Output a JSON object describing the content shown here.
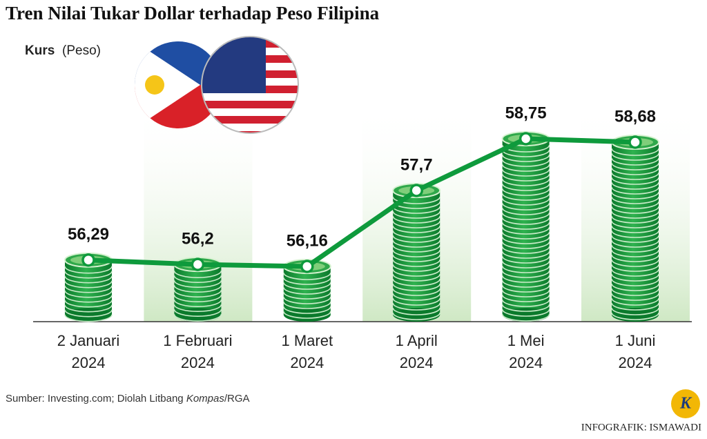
{
  "chart_data": {
    "type": "line",
    "title": "Tren Nilai Tukar Dollar terhadap Peso Filipina",
    "y_label": "Kurs",
    "y_unit": "(Peso)",
    "categories": [
      "2 Januari\n2024",
      "1 Februari\n2024",
      "1 Maret\n2024",
      "1 April\n2024",
      "1 Mei\n2024",
      "1 Juni\n2024"
    ],
    "values": [
      56.29,
      56.2,
      56.16,
      57.7,
      58.75,
      58.68
    ],
    "value_labels": [
      "56,29",
      "56,2",
      "56,16",
      "57,7",
      "58,75",
      "58,68"
    ],
    "color": "#0e9a3c",
    "source": {
      "prefix": "Sumber: Investing.com; Diolah Litbang ",
      "italic": "Kompas",
      "suffix": "/RGA"
    },
    "credit": "INFOGRAFIK: ISMAWADI"
  }
}
